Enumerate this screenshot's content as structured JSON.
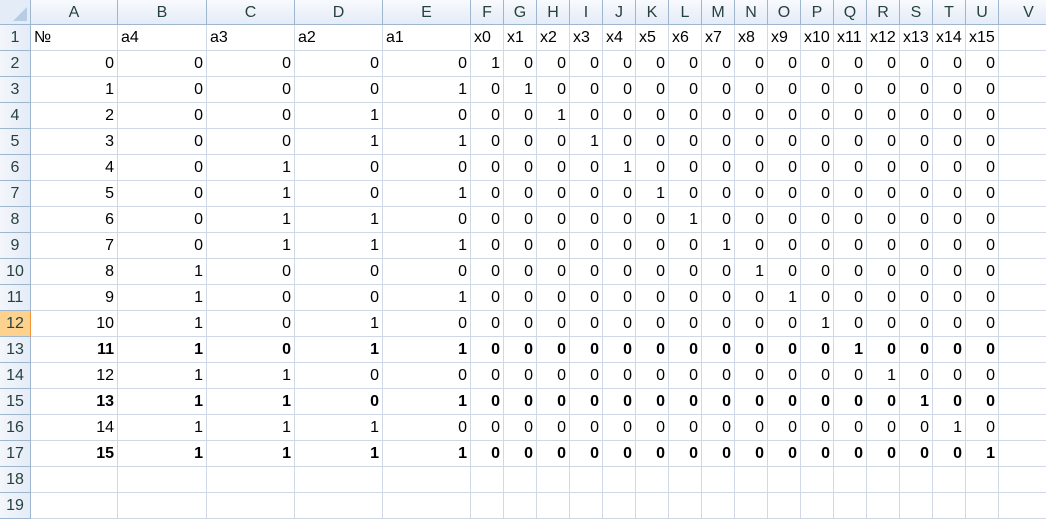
{
  "columns": [
    "A",
    "B",
    "C",
    "D",
    "E",
    "F",
    "G",
    "H",
    "I",
    "J",
    "K",
    "L",
    "M",
    "N",
    "O",
    "P",
    "Q",
    "R",
    "S",
    "T",
    "U",
    "V"
  ],
  "row_count": 19,
  "selected_row": 12,
  "header_row": [
    "№",
    "a4",
    "a3",
    "a2",
    "a1",
    "x0",
    "x1",
    "x2",
    "x3",
    "x4",
    "x5",
    "x6",
    "x7",
    "x8",
    "x9",
    "x10",
    "x11",
    "x12",
    "x13",
    "x14",
    "x15"
  ],
  "rows": [
    {
      "n": 0,
      "a": [
        0,
        0,
        0,
        0
      ],
      "bold": false
    },
    {
      "n": 1,
      "a": [
        0,
        0,
        0,
        1
      ],
      "bold": false
    },
    {
      "n": 2,
      "a": [
        0,
        0,
        1,
        0
      ],
      "bold": false
    },
    {
      "n": 3,
      "a": [
        0,
        0,
        1,
        1
      ],
      "bold": false
    },
    {
      "n": 4,
      "a": [
        0,
        1,
        0,
        0
      ],
      "bold": false
    },
    {
      "n": 5,
      "a": [
        0,
        1,
        0,
        1
      ],
      "bold": false
    },
    {
      "n": 6,
      "a": [
        0,
        1,
        1,
        0
      ],
      "bold": false
    },
    {
      "n": 7,
      "a": [
        0,
        1,
        1,
        1
      ],
      "bold": false
    },
    {
      "n": 8,
      "a": [
        1,
        0,
        0,
        0
      ],
      "bold": false
    },
    {
      "n": 9,
      "a": [
        1,
        0,
        0,
        1
      ],
      "bold": false
    },
    {
      "n": 10,
      "a": [
        1,
        0,
        1,
        0
      ],
      "bold": false
    },
    {
      "n": 11,
      "a": [
        1,
        0,
        1,
        1
      ],
      "bold": true
    },
    {
      "n": 12,
      "a": [
        1,
        1,
        0,
        0
      ],
      "bold": false
    },
    {
      "n": 13,
      "a": [
        1,
        1,
        0,
        1
      ],
      "bold": true
    },
    {
      "n": 14,
      "a": [
        1,
        1,
        1,
        0
      ],
      "bold": false
    },
    {
      "n": 15,
      "a": [
        1,
        1,
        1,
        1
      ],
      "bold": true
    }
  ]
}
